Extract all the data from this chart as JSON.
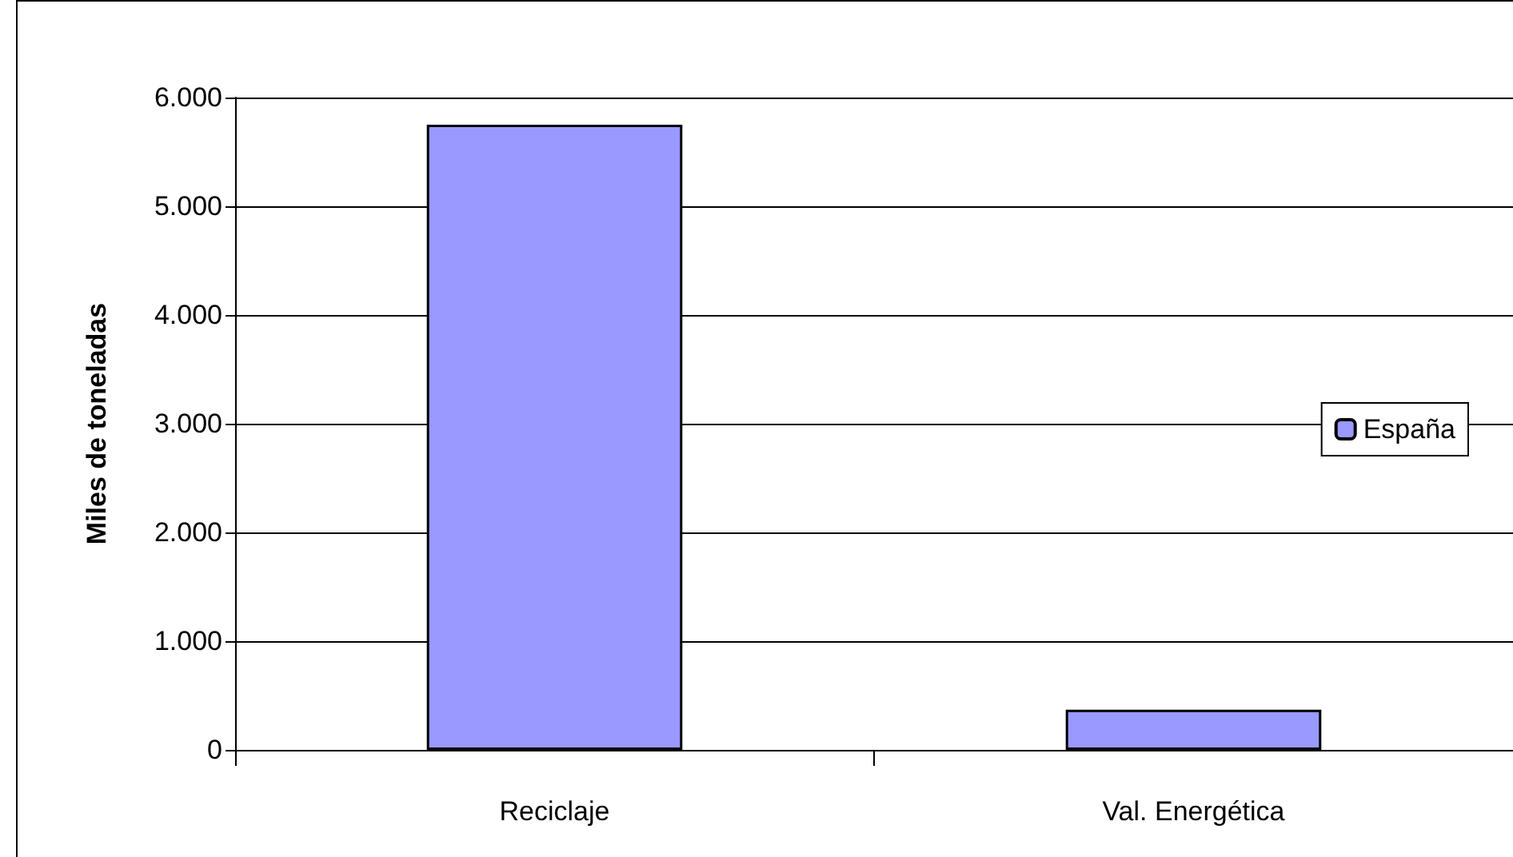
{
  "chart_data": {
    "type": "bar",
    "ylabel": "Miles de toneladas",
    "categories": [
      "Reciclaje",
      "Val. Energética"
    ],
    "series": [
      {
        "name": "España",
        "color": "#9999ff",
        "values": [
          5750,
          370
        ]
      }
    ],
    "ylim": [
      0,
      6000
    ],
    "yticks": [
      {
        "value": 0,
        "label": "0"
      },
      {
        "value": 1000,
        "label": "1.000"
      },
      {
        "value": 2000,
        "label": "2.000"
      },
      {
        "value": 3000,
        "label": "3.000"
      },
      {
        "value": 4000,
        "label": "4.000"
      },
      {
        "value": 5000,
        "label": "5.000"
      },
      {
        "value": 6000,
        "label": "6.000"
      }
    ],
    "grid": "y",
    "legend": "right"
  }
}
